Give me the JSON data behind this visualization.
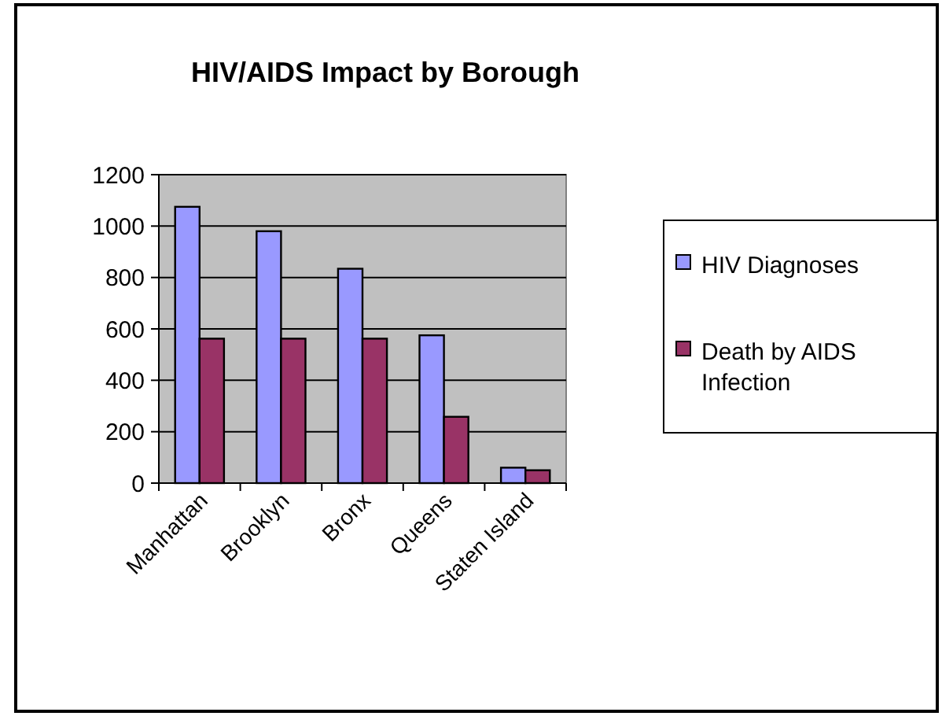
{
  "chart_data": {
    "type": "bar",
    "title": "HIV/AIDS Impact by Borough",
    "categories": [
      "Manhattan",
      "Brooklyn",
      "Bronx",
      "Queens",
      "Staten Island"
    ],
    "series": [
      {
        "name": "HIV Diagnoses",
        "color": "#9999ff",
        "values": [
          1075,
          980,
          834,
          575,
          60
        ]
      },
      {
        "name": "Death by AIDS Infection",
        "color": "#993366",
        "values": [
          562,
          562,
          562,
          258,
          50
        ]
      }
    ],
    "ylim": [
      0,
      1200
    ],
    "yticks": [
      0,
      200,
      400,
      600,
      800,
      1000,
      1200
    ],
    "grid": "y",
    "legend": "right"
  }
}
